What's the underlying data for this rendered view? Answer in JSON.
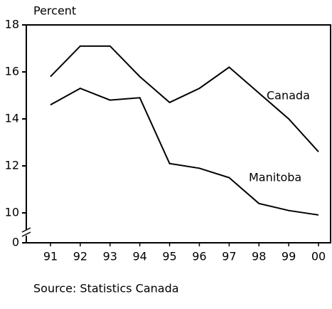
{
  "chart_data": {
    "type": "line",
    "y_label": "Percent",
    "source": "Source: Statistics Canada",
    "categories": [
      "91",
      "92",
      "93",
      "94",
      "95",
      "96",
      "97",
      "98",
      "99",
      "00"
    ],
    "series": [
      {
        "name": "Canada",
        "color": "#000000",
        "values": [
          15.8,
          17.1,
          17.1,
          15.8,
          14.7,
          15.3,
          16.2,
          15.1,
          14.0,
          12.6
        ]
      },
      {
        "name": "Manitoba",
        "color": "#000000",
        "values": [
          14.6,
          15.3,
          14.8,
          14.9,
          12.1,
          11.9,
          11.5,
          10.4,
          10.1,
          9.3
        ]
      }
    ],
    "ylim": [
      0,
      18
    ],
    "yticks": [
      0,
      10,
      12,
      14,
      16,
      18
    ],
    "axis_break": true
  }
}
